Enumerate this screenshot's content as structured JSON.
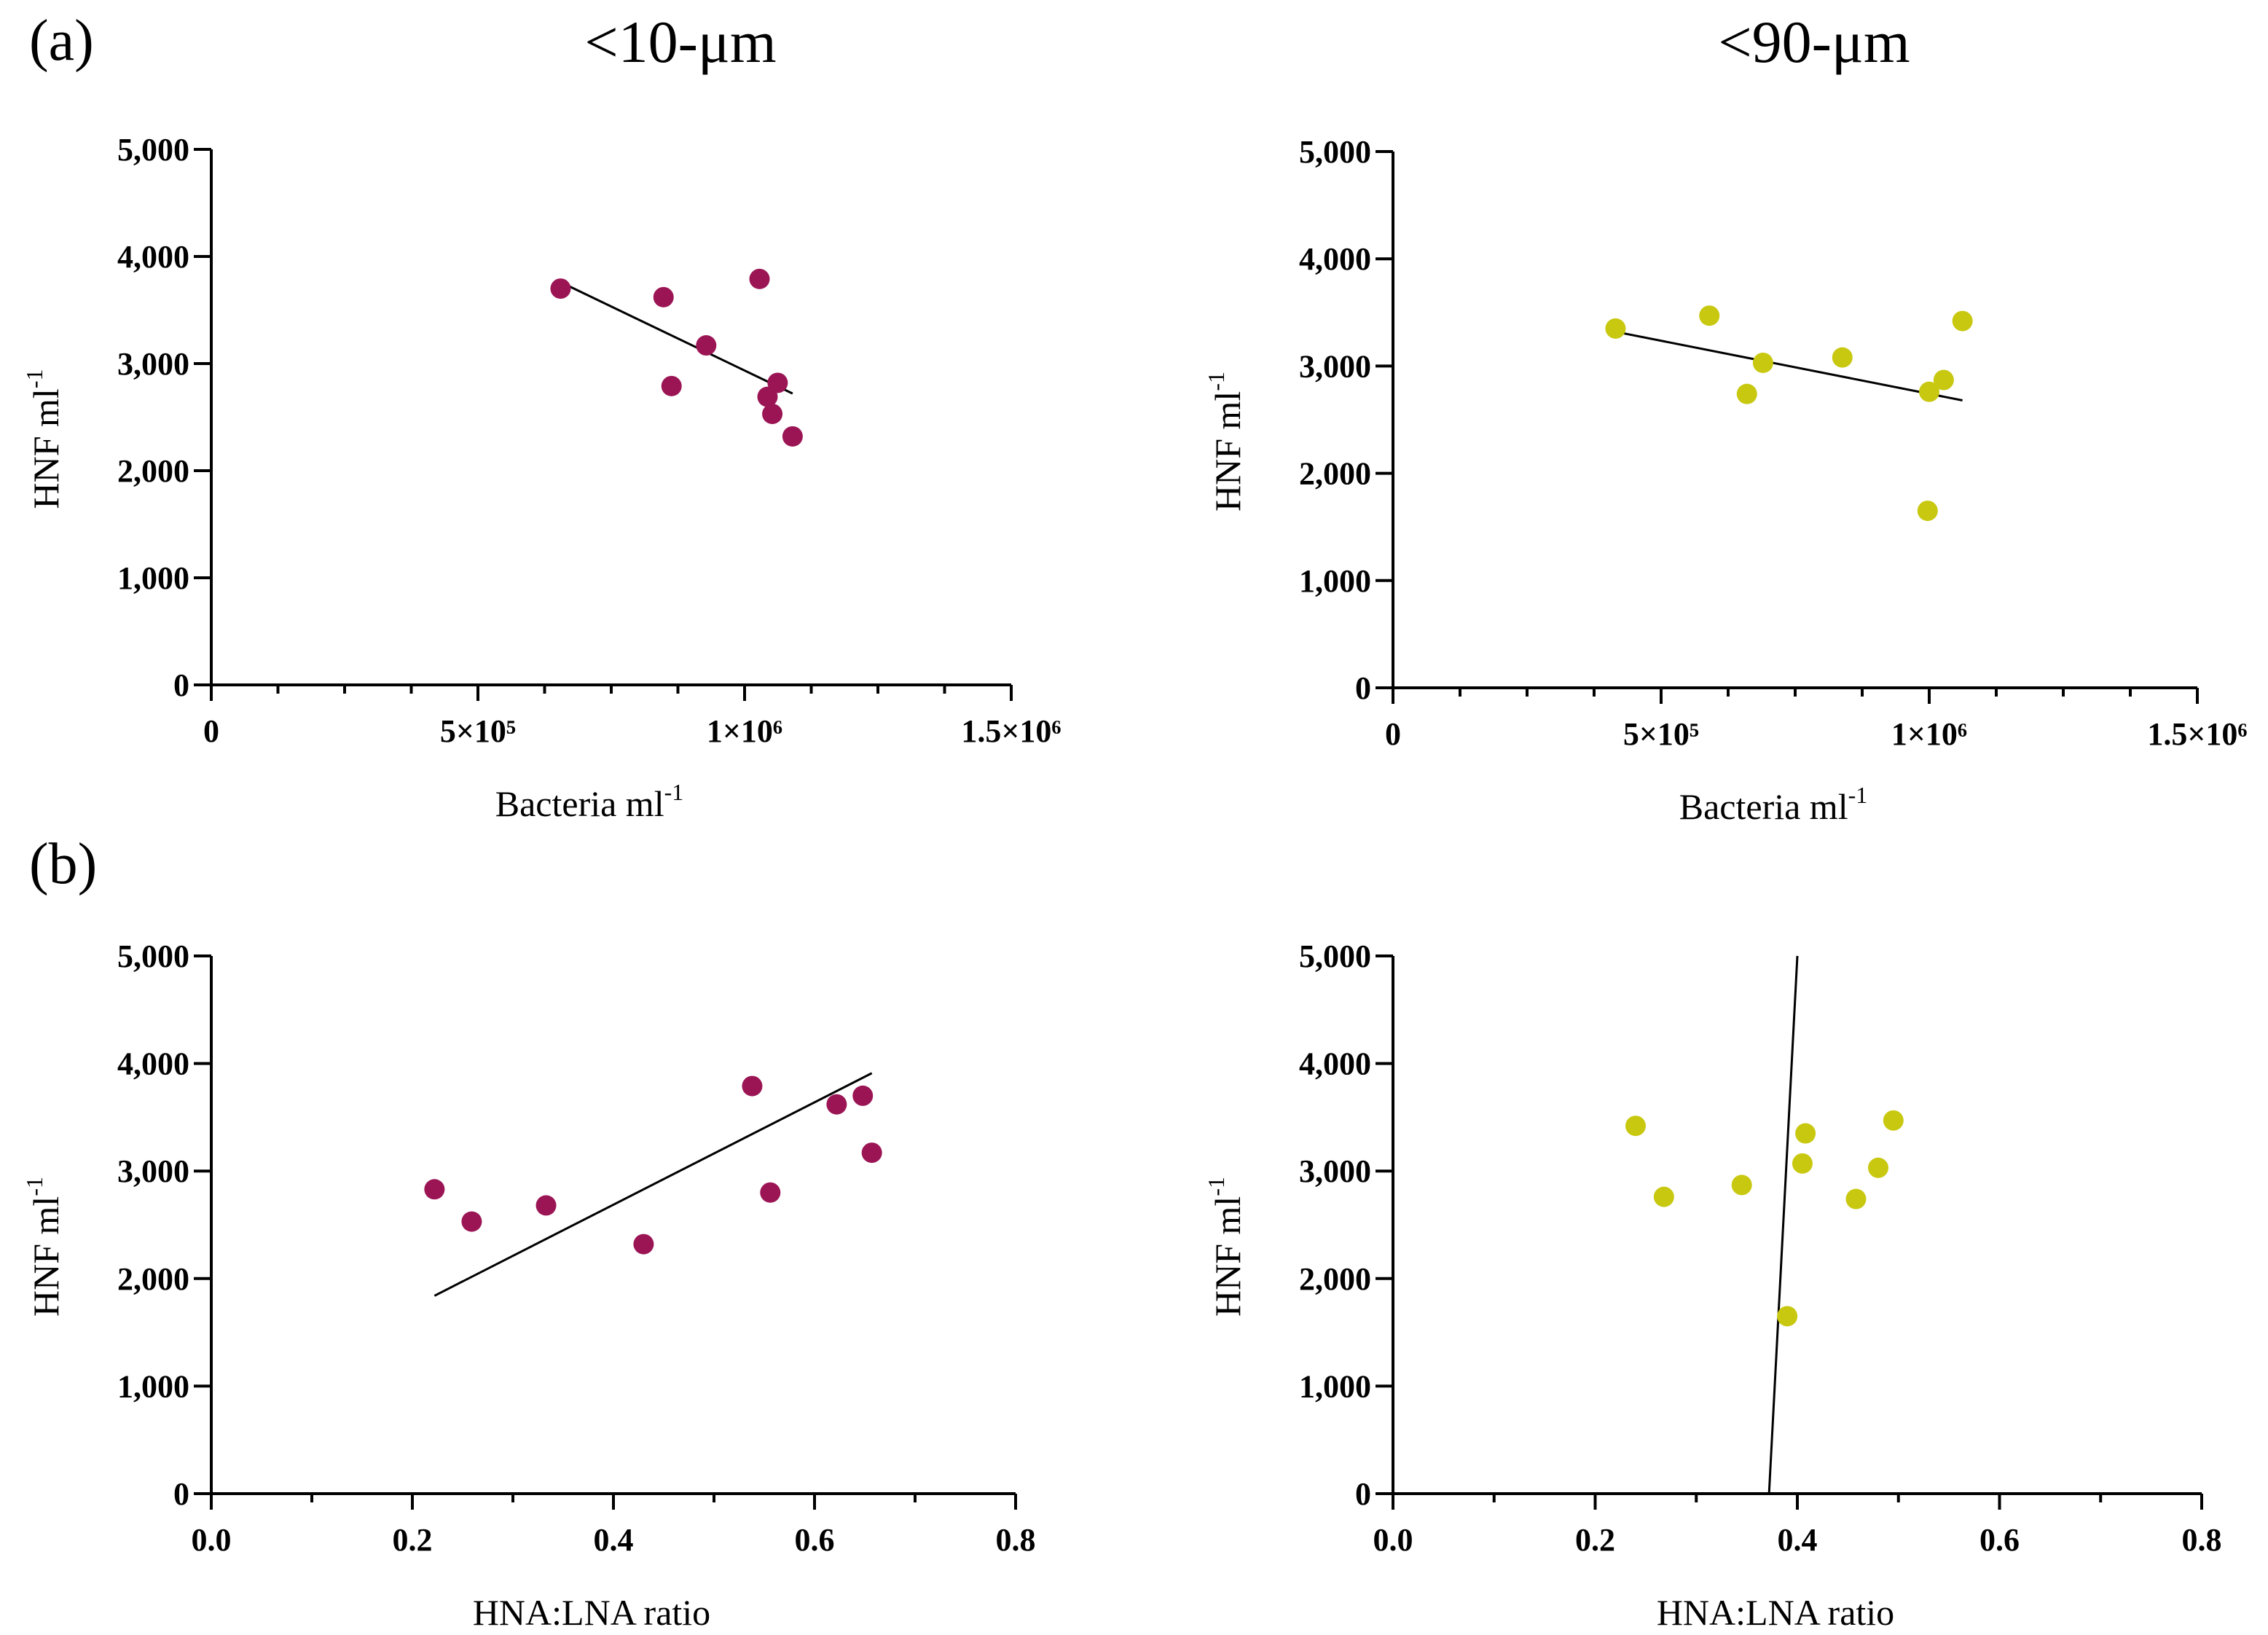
{
  "figure": {
    "panel_labels": [
      "(a)",
      "(b)"
    ],
    "column_titles": [
      "<10-μm",
      "<90-μm"
    ]
  },
  "chart_data": [
    {
      "id": "a-10um",
      "type": "scatter",
      "title": "<10-μm",
      "xlabel": "Bacteria ml",
      "xlabel_sup": "-1",
      "ylabel": "HNF ml",
      "ylabel_sup": "-1",
      "xlim": [
        0,
        1500000
      ],
      "ylim": [
        0,
        5000
      ],
      "xticks": [
        0,
        500000,
        1000000,
        1500000
      ],
      "xtick_labels": [
        "0",
        "5×10⁵",
        "1×10⁶",
        "1.5×10⁶"
      ],
      "xminor_step": 125000,
      "yticks": [
        0,
        1000,
        2000,
        3000,
        4000,
        5000
      ],
      "ytick_labels": [
        "0",
        "1,000",
        "2,000",
        "3,000",
        "4,000",
        "5,000"
      ],
      "color": "#9b1555",
      "x": [
        655000,
        848000,
        863000,
        928000,
        1028000,
        1043000,
        1052000,
        1062000,
        1090000
      ],
      "y": [
        3700,
        3620,
        2790,
        3170,
        3790,
        2690,
        2530,
        2820,
        2320
      ],
      "fit": {
        "x": [
          655000,
          1090000
        ],
        "y": [
          3760,
          2720
        ]
      }
    },
    {
      "id": "a-90um",
      "type": "scatter",
      "title": "<90-μm",
      "xlabel": "Bacteria ml",
      "xlabel_sup": "-1",
      "ylabel": "HNF ml",
      "ylabel_sup": "-1",
      "xlim": [
        0,
        1500000
      ],
      "ylim": [
        0,
        5000
      ],
      "xticks": [
        0,
        500000,
        1000000,
        1500000
      ],
      "xtick_labels": [
        "0",
        "5×10⁵",
        "1×10⁶",
        "1.5×10⁶"
      ],
      "xminor_step": 125000,
      "yticks": [
        0,
        1000,
        2000,
        3000,
        4000,
        5000
      ],
      "ytick_labels": [
        "0",
        "1,000",
        "2,000",
        "3,000",
        "4,000",
        "5,000"
      ],
      "color": "#c8c810",
      "x": [
        415000,
        590000,
        660000,
        690000,
        838000,
        997000,
        1000000,
        1027000,
        1062000
      ],
      "y": [
        3350,
        3470,
        2740,
        3030,
        3080,
        1650,
        2760,
        2870,
        3420
      ],
      "fit": {
        "x": [
          415000,
          1062000
        ],
        "y": [
          3320,
          2680
        ]
      }
    },
    {
      "id": "b-10um",
      "type": "scatter",
      "title": "<10-μm",
      "xlabel": "HNA:LNA ratio",
      "xlabel_sup": "",
      "ylabel": "HNF ml",
      "ylabel_sup": "-1",
      "xlim": [
        0,
        0.8
      ],
      "ylim": [
        0,
        5000
      ],
      "xticks": [
        0,
        0.2,
        0.4,
        0.6,
        0.8
      ],
      "xtick_labels": [
        "0.0",
        "0.2",
        "0.4",
        "0.6",
        "0.8"
      ],
      "xminor_step": 0.1,
      "yticks": [
        0,
        1000,
        2000,
        3000,
        4000,
        5000
      ],
      "ytick_labels": [
        "0",
        "1,000",
        "2,000",
        "3,000",
        "4,000",
        "5,000"
      ],
      "color": "#9b1555",
      "x": [
        0.222,
        0.259,
        0.333,
        0.43,
        0.538,
        0.556,
        0.622,
        0.648,
        0.657
      ],
      "y": [
        2830,
        2530,
        2680,
        2320,
        3790,
        2800,
        3620,
        3700,
        3170
      ],
      "fit": {
        "x": [
          0.222,
          0.657
        ],
        "y": [
          1840,
          3910
        ]
      }
    },
    {
      "id": "b-90um",
      "type": "scatter",
      "title": "<90-μm",
      "xlabel": "HNA:LNA ratio",
      "xlabel_sup": "",
      "ylabel": "HNF ml",
      "ylabel_sup": "-1",
      "xlim": [
        0,
        0.8
      ],
      "ylim": [
        0,
        5000
      ],
      "xticks": [
        0,
        0.2,
        0.4,
        0.6,
        0.8
      ],
      "xtick_labels": [
        "0.0",
        "0.2",
        "0.4",
        "0.6",
        "0.8"
      ],
      "xminor_step": 0.1,
      "yticks": [
        0,
        1000,
        2000,
        3000,
        4000,
        5000
      ],
      "ytick_labels": [
        "0",
        "1,000",
        "2,000",
        "3,000",
        "4,000",
        "5,000"
      ],
      "color": "#c8c810",
      "x": [
        0.24,
        0.268,
        0.345,
        0.39,
        0.405,
        0.408,
        0.458,
        0.48,
        0.495
      ],
      "y": [
        3420,
        2760,
        2870,
        1650,
        3070,
        3350,
        2740,
        3030,
        3470
      ],
      "fit": {
        "x": [
          0.372,
          0.4
        ],
        "y": [
          0,
          5000
        ]
      }
    }
  ]
}
